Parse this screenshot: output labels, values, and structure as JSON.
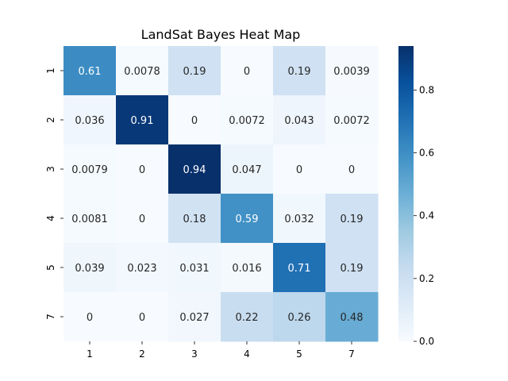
{
  "chart_data": {
    "type": "heatmap",
    "title": "LandSat Bayes Heat Map",
    "xlabel": "",
    "ylabel": "",
    "x_categories": [
      "1",
      "2",
      "3",
      "4",
      "5",
      "7"
    ],
    "y_categories": [
      "1",
      "2",
      "3",
      "4",
      "5",
      "7"
    ],
    "values": [
      [
        0.61,
        0.0078,
        0.19,
        0,
        0.19,
        0.0039
      ],
      [
        0.036,
        0.91,
        0,
        0.0072,
        0.043,
        0.0072
      ],
      [
        0.0079,
        0,
        0.94,
        0.047,
        0,
        0
      ],
      [
        0.0081,
        0,
        0.18,
        0.59,
        0.032,
        0.19
      ],
      [
        0.039,
        0.023,
        0.031,
        0.016,
        0.71,
        0.19
      ],
      [
        0,
        0,
        0.027,
        0.22,
        0.26,
        0.48
      ]
    ],
    "cell_labels": [
      [
        "0.61",
        "0.0078",
        "0.19",
        "0",
        "0.19",
        "0.0039"
      ],
      [
        "0.036",
        "0.91",
        "0",
        "0.0072",
        "0.043",
        "0.0072"
      ],
      [
        "0.0079",
        "0",
        "0.94",
        "0.047",
        "0",
        "0"
      ],
      [
        "0.0081",
        "0",
        "0.18",
        "0.59",
        "0.032",
        "0.19"
      ],
      [
        "0.039",
        "0.023",
        "0.031",
        "0.016",
        "0.71",
        "0.19"
      ],
      [
        "0",
        "0",
        "0.027",
        "0.22",
        "0.26",
        "0.48"
      ]
    ],
    "colormap": "Blues",
    "colorbar": {
      "range": [
        0,
        0.94
      ],
      "ticks": [
        0.0,
        0.2,
        0.4,
        0.6,
        0.8
      ],
      "tick_labels": [
        "0.0",
        "0.2",
        "0.4",
        "0.6",
        "0.8"
      ]
    },
    "grid": false,
    "legend": "colorbar-right"
  }
}
